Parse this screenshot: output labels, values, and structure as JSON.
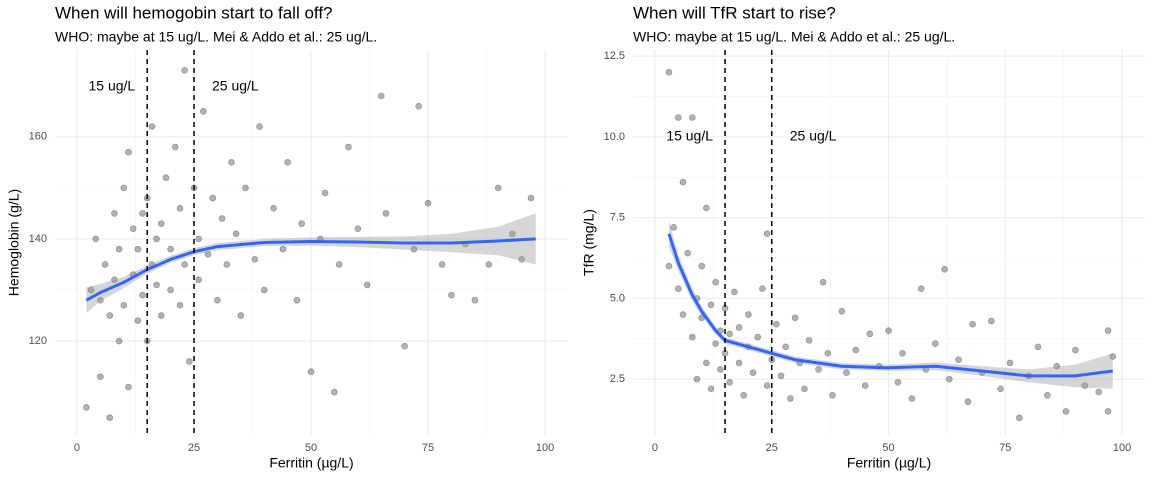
{
  "chart_data": [
    {
      "type": "scatter",
      "title": "When will hemogobin start to fall off?",
      "subtitle": "WHO: maybe at 15 ug/L. Mei & Addo et al.: 25 ug/L.",
      "x_label": "Ferritin (µg/L)",
      "y_label": "Hemoglobin (g/L)",
      "xlim": [
        -4.7,
        104.9
      ],
      "ylim": [
        101.6,
        177
      ],
      "xticks": [
        0,
        25,
        50,
        75,
        100
      ],
      "yticks": [
        120,
        140,
        160
      ],
      "grid": true,
      "point_color": "#000000",
      "vlines": [
        15,
        25
      ],
      "annotations": [
        "15 ug/L",
        "25 ug/L"
      ],
      "x": [
        2,
        3,
        4,
        5,
        5,
        6,
        7,
        7,
        8,
        8,
        9,
        9,
        10,
        10,
        11,
        11,
        12,
        12,
        13,
        13,
        14,
        14,
        15,
        15,
        16,
        16,
        17,
        17,
        18,
        18,
        19,
        20,
        20,
        21,
        22,
        22,
        23,
        23,
        24,
        25,
        26,
        26,
        27,
        28,
        29,
        30,
        31,
        32,
        33,
        34,
        35,
        36,
        38,
        39,
        40,
        42,
        44,
        45,
        47,
        48,
        50,
        52,
        53,
        55,
        56,
        58,
        60,
        62,
        65,
        66,
        70,
        72,
        73,
        75,
        78,
        80,
        83,
        85,
        88,
        90,
        93,
        95,
        97
      ],
      "y": [
        107,
        130,
        140,
        113,
        128,
        135,
        105,
        125,
        145,
        132,
        120,
        138,
        150,
        127,
        111,
        157,
        133,
        142,
        124,
        138,
        145,
        129,
        120,
        148,
        135,
        162,
        131,
        140,
        125,
        143,
        152,
        130,
        138,
        158,
        146,
        127,
        173,
        135,
        116,
        150,
        140,
        132,
        165,
        137,
        148,
        128,
        144,
        135,
        155,
        141,
        125,
        150,
        136,
        162,
        130,
        146,
        138,
        155,
        128,
        143,
        114,
        140,
        149,
        110,
        135,
        158,
        142,
        131,
        168,
        145,
        119,
        138,
        166,
        147,
        135,
        129,
        139,
        128,
        135,
        150,
        141,
        136,
        148
      ],
      "smooth": {
        "color": "#3366ff",
        "x": [
          2,
          5,
          10,
          15,
          20,
          25,
          30,
          40,
          50,
          60,
          70,
          80,
          90,
          98
        ],
        "y": [
          128,
          129.5,
          131.5,
          134,
          136,
          137.5,
          138.5,
          139.3,
          139.5,
          139.4,
          139.2,
          139.2,
          139.6,
          140
        ],
        "lower": [
          125.5,
          127.8,
          130.4,
          133.2,
          135.3,
          136.8,
          137.8,
          138.6,
          138.7,
          138.4,
          137.9,
          137.4,
          136.8,
          135
        ],
        "upper": [
          130.5,
          131.2,
          132.6,
          134.8,
          136.7,
          138.2,
          139.2,
          140,
          140.3,
          140.4,
          140.5,
          141,
          142.4,
          145
        ]
      }
    },
    {
      "type": "scatter",
      "title": "When will TfR start to rise?",
      "subtitle": "WHO: maybe at 15 ug/L. Mei & Addo et al.: 25 ug/L.",
      "x_label": "Ferritin (µg/L)",
      "y_label": "TfR (mg/L)",
      "xlim": [
        -4.7,
        104.9
      ],
      "ylim": [
        0.77,
        12.69
      ],
      "xticks": [
        0,
        25,
        50,
        75,
        100
      ],
      "yticks": [
        2.5,
        {
          "value": 5,
          "label": "5.0"
        },
        7.5,
        {
          "value": 10,
          "label": "10.0"
        },
        12.5
      ],
      "grid": true,
      "point_color": "#000000",
      "vlines": [
        15,
        25
      ],
      "annotations": [
        "15 ug/L",
        "25 ug/L"
      ],
      "x": [
        3,
        3,
        4,
        5,
        5,
        6,
        6,
        7,
        8,
        8,
        9,
        9,
        10,
        10,
        11,
        11,
        12,
        12,
        13,
        13,
        14,
        14,
        15,
        15,
        16,
        16,
        17,
        18,
        18,
        19,
        20,
        20,
        21,
        22,
        23,
        24,
        24,
        25,
        26,
        27,
        28,
        29,
        30,
        31,
        32,
        33,
        35,
        36,
        37,
        38,
        40,
        41,
        43,
        45,
        46,
        48,
        50,
        52,
        53,
        55,
        57,
        58,
        60,
        62,
        63,
        65,
        67,
        68,
        70,
        72,
        74,
        76,
        78,
        80,
        82,
        84,
        86,
        88,
        90,
        92,
        95,
        97,
        98,
        97
      ],
      "y": [
        12,
        6,
        7.2,
        10.6,
        5.3,
        8.6,
        4.5,
        6.4,
        10.6,
        3.8,
        5.0,
        2.5,
        4.4,
        6.0,
        7.8,
        3.0,
        4.8,
        2.2,
        3.6,
        5.5,
        4.0,
        2.8,
        3.3,
        4.7,
        2.4,
        3.9,
        5.2,
        3.0,
        4.1,
        2.0,
        3.5,
        4.5,
        2.7,
        3.8,
        5.3,
        7.0,
        2.3,
        3.1,
        4.2,
        2.6,
        3.5,
        1.9,
        4.4,
        3.0,
        2.2,
        3.7,
        2.8,
        5.5,
        3.3,
        2.0,
        4.6,
        2.7,
        3.4,
        2.3,
        3.9,
        2.9,
        4.0,
        2.4,
        3.3,
        1.9,
        5.3,
        2.8,
        3.6,
        5.9,
        2.5,
        3.1,
        1.8,
        4.2,
        2.7,
        4.3,
        2.2,
        3.0,
        1.3,
        2.6,
        3.5,
        2.0,
        2.9,
        1.5,
        3.4,
        2.3,
        2.1,
        1.5,
        3.2,
        4.0
      ],
      "smooth": {
        "color": "#3366ff",
        "x": [
          3,
          5,
          8,
          10,
          13,
          15,
          20,
          25,
          30,
          40,
          50,
          60,
          70,
          80,
          90,
          98
        ],
        "y": [
          7.0,
          6.1,
          5.1,
          4.6,
          4.0,
          3.7,
          3.5,
          3.3,
          3.1,
          2.9,
          2.85,
          2.9,
          2.75,
          2.6,
          2.6,
          2.75
        ],
        "lower": [
          6.6,
          5.85,
          4.9,
          4.45,
          3.88,
          3.6,
          3.4,
          3.2,
          3.0,
          2.8,
          2.75,
          2.78,
          2.6,
          2.4,
          2.25,
          2.2
        ],
        "upper": [
          7.4,
          6.35,
          5.3,
          4.75,
          4.12,
          3.8,
          3.6,
          3.4,
          3.2,
          3.0,
          2.95,
          3.02,
          2.9,
          2.8,
          2.95,
          3.3
        ]
      }
    }
  ]
}
